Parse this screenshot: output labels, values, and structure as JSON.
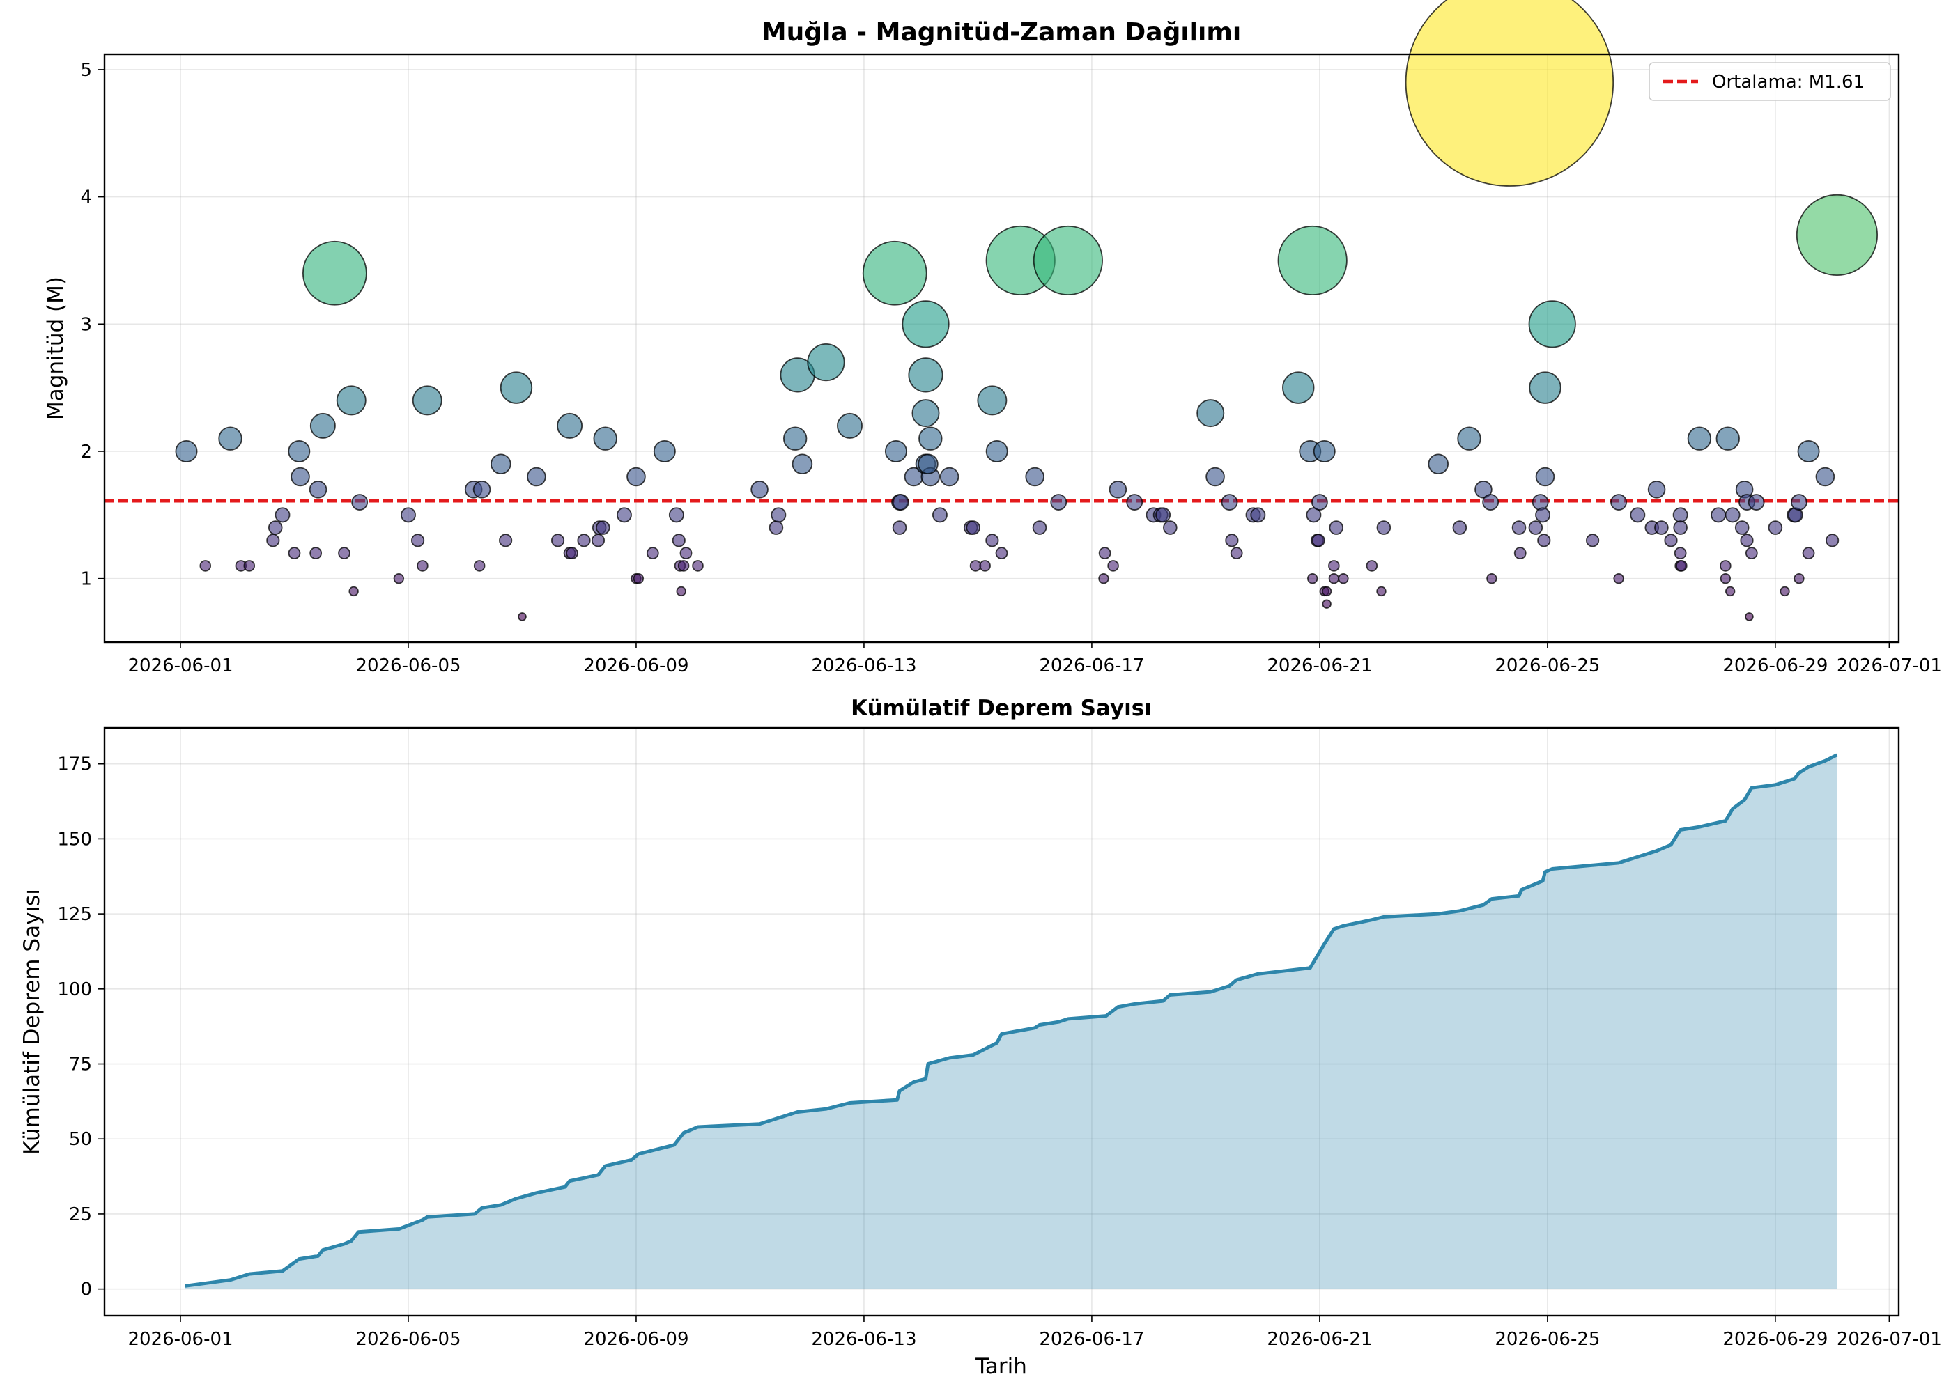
{
  "chart_data": [
    {
      "type": "scatter",
      "title": "Muğla - Magnitüd-Zaman Dağılımı",
      "xlabel": "",
      "ylabel": "Magnitüd (M)",
      "x_ticks": [
        "2026-06-01",
        "2026-06-05",
        "2026-06-09",
        "2026-06-13",
        "2026-06-17",
        "2026-06-21",
        "2026-06-25",
        "2026-06-29",
        "2026-07-01"
      ],
      "y_ticks": [
        1,
        2,
        3,
        4,
        5
      ],
      "xlim": [
        "2026-05-30T16:00",
        "2026-07-01T04:00"
      ],
      "ylim": [
        0.5,
        5.12
      ],
      "grid": true,
      "legend_position": "top-right",
      "mean_line": {
        "value": 1.61,
        "label": "Ortalama: M1.61",
        "color": "#e41a1c",
        "style": "dashed"
      },
      "colormap": "viridis",
      "points": [
        [
          "2026-06-01T02:30",
          2.0
        ],
        [
          "2026-06-01T10:30",
          1.1
        ],
        [
          "2026-06-01T21:00",
          2.1
        ],
        [
          "2026-06-02T01:30",
          1.1
        ],
        [
          "2026-06-02T05:00",
          1.1
        ],
        [
          "2026-06-02T15:00",
          1.3
        ],
        [
          "2026-06-02T16:00",
          1.4
        ],
        [
          "2026-06-02T19:00",
          1.5
        ],
        [
          "2026-06-03T00:00",
          1.2
        ],
        [
          "2026-06-03T02:00",
          2.0
        ],
        [
          "2026-06-03T02:30",
          1.8
        ],
        [
          "2026-06-03T09:00",
          1.2
        ],
        [
          "2026-06-03T10:00",
          1.7
        ],
        [
          "2026-06-03T12:00",
          2.2
        ],
        [
          "2026-06-03T17:00",
          3.4
        ],
        [
          "2026-06-03T21:00",
          1.2
        ],
        [
          "2026-06-04T00:00",
          2.4
        ],
        [
          "2026-06-04T01:00",
          0.9
        ],
        [
          "2026-06-04T03:30",
          1.6
        ],
        [
          "2026-06-04T20:00",
          1.0
        ],
        [
          "2026-06-05T00:00",
          1.5
        ],
        [
          "2026-06-05T04:00",
          1.3
        ],
        [
          "2026-06-05T06:00",
          1.1
        ],
        [
          "2026-06-05T08:00",
          2.4
        ],
        [
          "2026-06-06T03:30",
          1.7
        ],
        [
          "2026-06-06T06:00",
          1.1
        ],
        [
          "2026-06-06T07:00",
          1.7
        ],
        [
          "2026-06-06T15:00",
          1.9
        ],
        [
          "2026-06-06T17:00",
          1.3
        ],
        [
          "2026-06-06T21:30",
          2.5
        ],
        [
          "2026-06-07T00:00",
          0.7
        ],
        [
          "2026-06-07T06:00",
          1.8
        ],
        [
          "2026-06-07T15:00",
          1.3
        ],
        [
          "2026-06-07T20:00",
          2.2
        ],
        [
          "2026-06-07T20:00",
          1.2
        ],
        [
          "2026-06-07T21:00",
          1.2
        ],
        [
          "2026-06-08T02:00",
          1.3
        ],
        [
          "2026-06-08T08:00",
          1.3
        ],
        [
          "2026-06-08T08:30",
          1.4
        ],
        [
          "2026-06-08T10:00",
          1.4
        ],
        [
          "2026-06-08T11:00",
          2.1
        ],
        [
          "2026-06-08T19:00",
          1.5
        ],
        [
          "2026-06-09T00:00",
          1.8
        ],
        [
          "2026-06-09T00:00",
          1.0
        ],
        [
          "2026-06-09T01:00",
          1.0
        ],
        [
          "2026-06-09T07:00",
          1.2
        ],
        [
          "2026-06-09T12:00",
          2.0
        ],
        [
          "2026-06-09T17:00",
          1.5
        ],
        [
          "2026-06-09T18:00",
          1.3
        ],
        [
          "2026-06-09T18:30",
          1.1
        ],
        [
          "2026-06-09T19:00",
          0.9
        ],
        [
          "2026-06-09T20:00",
          1.1
        ],
        [
          "2026-06-09T21:00",
          1.2
        ],
        [
          "2026-06-10T02:00",
          1.1
        ],
        [
          "2026-06-11T04:00",
          1.7
        ],
        [
          "2026-06-11T11:00",
          1.4
        ],
        [
          "2026-06-11T12:00",
          1.5
        ],
        [
          "2026-06-11T19:00",
          2.1
        ],
        [
          "2026-06-11T20:00",
          2.6
        ],
        [
          "2026-06-11T22:00",
          1.9
        ],
        [
          "2026-06-12T08:00",
          2.7
        ],
        [
          "2026-06-12T18:00",
          2.2
        ],
        [
          "2026-06-13T13:00",
          3.4
        ],
        [
          "2026-06-13T13:30",
          2.0
        ],
        [
          "2026-06-13T15:00",
          1.6
        ],
        [
          "2026-06-13T15:00",
          1.4
        ],
        [
          "2026-06-13T15:30",
          1.6
        ],
        [
          "2026-06-13T21:00",
          1.8
        ],
        [
          "2026-06-14T02:00",
          3.0
        ],
        [
          "2026-06-14T02:00",
          2.6
        ],
        [
          "2026-06-14T02:00",
          2.3
        ],
        [
          "2026-06-14T04:00",
          2.1
        ],
        [
          "2026-06-14T02:00",
          1.9
        ],
        [
          "2026-06-14T04:00",
          1.8
        ],
        [
          "2026-06-14T03:00",
          1.9
        ],
        [
          "2026-06-14T08:00",
          1.5
        ],
        [
          "2026-06-14T12:00",
          1.8
        ],
        [
          "2026-06-14T21:00",
          1.4
        ],
        [
          "2026-06-14T22:00",
          1.4
        ],
        [
          "2026-06-14T23:00",
          1.1
        ],
        [
          "2026-06-15T03:00",
          1.1
        ],
        [
          "2026-06-15T06:00",
          2.4
        ],
        [
          "2026-06-15T06:00",
          1.3
        ],
        [
          "2026-06-15T08:00",
          2.0
        ],
        [
          "2026-06-15T10:00",
          1.2
        ],
        [
          "2026-06-15T18:00",
          3.5
        ],
        [
          "2026-06-16T00:00",
          1.8
        ],
        [
          "2026-06-16T02:00",
          1.4
        ],
        [
          "2026-06-16T10:00",
          1.6
        ],
        [
          "2026-06-16T14:00",
          3.5
        ],
        [
          "2026-06-17T05:00",
          1.0
        ],
        [
          "2026-06-17T05:30",
          1.2
        ],
        [
          "2026-06-17T09:00",
          1.1
        ],
        [
          "2026-06-17T11:00",
          1.7
        ],
        [
          "2026-06-17T18:00",
          1.6
        ],
        [
          "2026-06-18T02:00",
          1.5
        ],
        [
          "2026-06-18T05:00",
          1.5
        ],
        [
          "2026-06-18T06:00",
          1.5
        ],
        [
          "2026-06-18T09:00",
          1.4
        ],
        [
          "2026-06-19T02:00",
          2.3
        ],
        [
          "2026-06-19T04:00",
          1.8
        ],
        [
          "2026-06-19T10:00",
          1.6
        ],
        [
          "2026-06-19T11:00",
          1.3
        ],
        [
          "2026-06-19T13:00",
          1.2
        ],
        [
          "2026-06-19T20:00",
          1.5
        ],
        [
          "2026-06-19T22:00",
          1.5
        ],
        [
          "2026-06-20T15:00",
          2.5
        ],
        [
          "2026-06-20T20:00",
          2.0
        ],
        [
          "2026-06-20T21:00",
          1.0
        ],
        [
          "2026-06-20T21:30",
          1.5
        ],
        [
          "2026-06-20T23:00",
          1.3
        ],
        [
          "2026-06-20T23:30",
          1.3
        ],
        [
          "2026-06-21T00:00",
          1.6
        ],
        [
          "2026-06-21T02:00",
          2.0
        ],
        [
          "2026-06-21T02:00",
          0.9
        ],
        [
          "2026-06-21T03:00",
          0.9
        ],
        [
          "2026-06-21T03:00",
          0.8
        ],
        [
          "2026-06-21T06:00",
          1.0
        ],
        [
          "2026-06-21T06:00",
          1.1
        ],
        [
          "2026-06-21T07:00",
          1.4
        ],
        [
          "2026-06-21T10:00",
          1.0
        ],
        [
          "2026-06-20T21:00",
          3.5
        ],
        [
          "2026-06-21T22:00",
          1.1
        ],
        [
          "2026-06-22T02:00",
          0.9
        ],
        [
          "2026-06-22T03:00",
          1.4
        ],
        [
          "2026-06-23T02:00",
          1.9
        ],
        [
          "2026-06-23T11:00",
          1.4
        ],
        [
          "2026-06-23T15:00",
          2.1
        ],
        [
          "2026-06-23T21:00",
          1.7
        ],
        [
          "2026-06-24T00:00",
          1.6
        ],
        [
          "2026-06-24T00:30",
          1.0
        ],
        [
          "2026-06-24T08:00",
          4.9
        ],
        [
          "2026-06-24T12:00",
          1.4
        ],
        [
          "2026-06-24T12:30",
          1.2
        ],
        [
          "2026-06-24T19:00",
          1.4
        ],
        [
          "2026-06-24T21:00",
          1.6
        ],
        [
          "2026-06-24T22:00",
          1.5
        ],
        [
          "2026-06-24T22:30",
          1.3
        ],
        [
          "2026-06-24T23:00",
          2.5
        ],
        [
          "2026-06-24T23:00",
          1.8
        ],
        [
          "2026-06-25T02:00",
          3.0
        ],
        [
          "2026-06-25T19:00",
          1.3
        ],
        [
          "2026-06-26T06:00",
          1.6
        ],
        [
          "2026-06-26T06:00",
          1.0
        ],
        [
          "2026-06-26T14:00",
          1.5
        ],
        [
          "2026-06-26T20:00",
          1.4
        ],
        [
          "2026-06-26T22:00",
          1.7
        ],
        [
          "2026-06-27T00:00",
          1.4
        ],
        [
          "2026-06-27T04:00",
          1.3
        ],
        [
          "2026-06-27T08:00",
          1.5
        ],
        [
          "2026-06-27T08:00",
          1.4
        ],
        [
          "2026-06-27T08:00",
          1.2
        ],
        [
          "2026-06-27T08:00",
          1.1
        ],
        [
          "2026-06-27T08:30",
          1.1
        ],
        [
          "2026-06-27T16:00",
          2.1
        ],
        [
          "2026-06-28T00:00",
          1.5
        ],
        [
          "2026-06-28T03:00",
          1.1
        ],
        [
          "2026-06-28T03:00",
          1.0
        ],
        [
          "2026-06-28T04:00",
          2.1
        ],
        [
          "2026-06-28T05:00",
          0.9
        ],
        [
          "2026-06-28T06:00",
          1.5
        ],
        [
          "2026-06-28T10:00",
          1.4
        ],
        [
          "2026-06-28T11:00",
          1.7
        ],
        [
          "2026-06-28T12:00",
          1.6
        ],
        [
          "2026-06-28T12:00",
          1.3
        ],
        [
          "2026-06-28T13:00",
          0.7
        ],
        [
          "2026-06-28T14:00",
          1.2
        ],
        [
          "2026-06-28T16:00",
          1.6
        ],
        [
          "2026-06-29T00:00",
          1.4
        ],
        [
          "2026-06-29T04:00",
          0.9
        ],
        [
          "2026-06-29T08:00",
          1.5
        ],
        [
          "2026-06-29T08:30",
          1.5
        ],
        [
          "2026-06-29T10:00",
          1.0
        ],
        [
          "2026-06-29T10:00",
          1.6
        ],
        [
          "2026-06-29T14:00",
          2.0
        ],
        [
          "2026-06-29T14:00",
          1.2
        ],
        [
          "2026-06-29T21:00",
          1.8
        ],
        [
          "2026-06-30T00:00",
          1.3
        ],
        [
          "2026-06-30T02:00",
          3.7
        ]
      ]
    },
    {
      "type": "area",
      "title": "Kümülatif Deprem Sayısı",
      "xlabel": "Tarih",
      "ylabel": "Kümülatif Deprem Sayısı",
      "x_ticks": [
        "2026-06-01",
        "2026-06-05",
        "2026-06-09",
        "2026-06-13",
        "2026-06-17",
        "2026-06-21",
        "2026-06-25",
        "2026-06-29",
        "2026-07-01"
      ],
      "y_ticks": [
        0,
        25,
        50,
        75,
        100,
        125,
        150,
        175
      ],
      "xlim": [
        "2026-05-30T16:00",
        "2026-07-01T04:00"
      ],
      "ylim": [
        -8.9,
        187
      ],
      "grid": true,
      "line_color": "#2e86ab",
      "fill_color": "#2e86ab",
      "fill_opacity": 0.3,
      "series": [
        [
          "2026-06-01T02:00",
          1
        ],
        [
          "2026-06-01T21:00",
          3
        ],
        [
          "2026-06-02T05:00",
          5
        ],
        [
          "2026-06-02T19:00",
          6
        ],
        [
          "2026-06-03T02:00",
          10
        ],
        [
          "2026-06-03T10:00",
          11
        ],
        [
          "2026-06-03T12:00",
          13
        ],
        [
          "2026-06-03T21:00",
          15
        ],
        [
          "2026-06-04T00:00",
          16
        ],
        [
          "2026-06-04T03:00",
          19
        ],
        [
          "2026-06-04T20:00",
          20
        ],
        [
          "2026-06-05T06:00",
          23
        ],
        [
          "2026-06-05T08:00",
          24
        ],
        [
          "2026-06-06T04:00",
          25
        ],
        [
          "2026-06-06T07:00",
          27
        ],
        [
          "2026-06-06T15:00",
          28
        ],
        [
          "2026-06-06T21:00",
          30
        ],
        [
          "2026-06-07T06:00",
          32
        ],
        [
          "2026-06-07T18:00",
          34
        ],
        [
          "2026-06-07T20:00",
          36
        ],
        [
          "2026-06-08T08:00",
          38
        ],
        [
          "2026-06-08T11:00",
          41
        ],
        [
          "2026-06-08T22:00",
          43
        ],
        [
          "2026-06-09T01:00",
          45
        ],
        [
          "2026-06-09T16:00",
          48
        ],
        [
          "2026-06-09T20:00",
          52
        ],
        [
          "2026-06-10T02:00",
          54
        ],
        [
          "2026-06-11T04:00",
          55
        ],
        [
          "2026-06-11T12:00",
          57
        ],
        [
          "2026-06-11T20:00",
          59
        ],
        [
          "2026-06-12T08:00",
          60
        ],
        [
          "2026-06-12T18:00",
          62
        ],
        [
          "2026-06-13T14:00",
          63
        ],
        [
          "2026-06-13T15:00",
          66
        ],
        [
          "2026-06-13T21:00",
          69
        ],
        [
          "2026-06-14T02:00",
          70
        ],
        [
          "2026-06-14T03:00",
          75
        ],
        [
          "2026-06-14T12:00",
          77
        ],
        [
          "2026-06-14T22:00",
          78
        ],
        [
          "2026-06-15T03:00",
          80
        ],
        [
          "2026-06-15T08:00",
          82
        ],
        [
          "2026-06-15T10:00",
          85
        ],
        [
          "2026-06-16T00:00",
          87
        ],
        [
          "2026-06-16T02:00",
          88
        ],
        [
          "2026-06-16T10:00",
          89
        ],
        [
          "2026-06-16T14:00",
          90
        ],
        [
          "2026-06-17T06:00",
          91
        ],
        [
          "2026-06-17T11:00",
          94
        ],
        [
          "2026-06-17T18:00",
          95
        ],
        [
          "2026-06-18T06:00",
          96
        ],
        [
          "2026-06-18T09:00",
          98
        ],
        [
          "2026-06-19T02:00",
          99
        ],
        [
          "2026-06-19T10:00",
          101
        ],
        [
          "2026-06-19T13:00",
          103
        ],
        [
          "2026-06-19T22:00",
          105
        ],
        [
          "2026-06-20T20:00",
          107
        ],
        [
          "2026-06-20T23:00",
          111
        ],
        [
          "2026-06-21T02:00",
          115
        ],
        [
          "2026-06-21T06:00",
          120
        ],
        [
          "2026-06-21T10:00",
          121
        ],
        [
          "2026-06-21T22:00",
          123
        ],
        [
          "2026-06-22T03:00",
          124
        ],
        [
          "2026-06-23T02:00",
          125
        ],
        [
          "2026-06-23T11:00",
          126
        ],
        [
          "2026-06-23T21:00",
          128
        ],
        [
          "2026-06-24T00:30",
          130
        ],
        [
          "2026-06-24T12:00",
          131
        ],
        [
          "2026-06-24T13:00",
          133
        ],
        [
          "2026-06-24T22:00",
          136
        ],
        [
          "2026-06-24T23:00",
          139
        ],
        [
          "2026-06-25T02:00",
          140
        ],
        [
          "2026-06-26T06:00",
          142
        ],
        [
          "2026-06-26T14:00",
          144
        ],
        [
          "2026-06-26T22:00",
          146
        ],
        [
          "2026-06-27T04:00",
          148
        ],
        [
          "2026-06-27T08:00",
          153
        ],
        [
          "2026-06-27T16:00",
          154
        ],
        [
          "2026-06-28T03:00",
          156
        ],
        [
          "2026-06-28T06:00",
          160
        ],
        [
          "2026-06-28T11:00",
          163
        ],
        [
          "2026-06-28T14:00",
          167
        ],
        [
          "2026-06-29T00:00",
          168
        ],
        [
          "2026-06-29T08:00",
          170
        ],
        [
          "2026-06-29T10:00",
          172
        ],
        [
          "2026-06-29T14:00",
          174
        ],
        [
          "2026-06-29T21:00",
          176
        ],
        [
          "2026-06-30T02:00",
          178
        ]
      ]
    }
  ]
}
